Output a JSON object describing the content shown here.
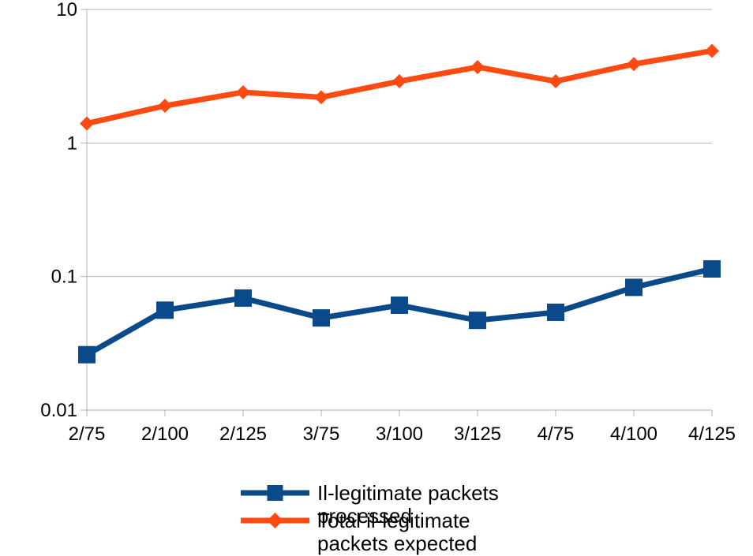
{
  "chart_data": {
    "type": "line",
    "title": "",
    "xlabel": "",
    "ylabel": "",
    "yscale": "log",
    "ylim": [
      0.01,
      10
    ],
    "y_ticks": [
      "10",
      "1",
      "0.1",
      "0.01"
    ],
    "categories": [
      "2/75",
      "2/100",
      "2/125",
      "3/75",
      "3/100",
      "3/125",
      "4/75",
      "4/100",
      "4/125"
    ],
    "grid": "horizontal",
    "legend_position": "bottom-right",
    "series": [
      {
        "name": "Il-legitimate packets processed",
        "color": "#0b4a8a",
        "marker": "square",
        "values": [
          0.026,
          0.056,
          0.069,
          0.049,
          0.061,
          0.047,
          0.054,
          0.083,
          0.114
        ]
      },
      {
        "name": "Total il-legitimate packets expected",
        "color": "#ff4a12",
        "marker": "diamond",
        "values": [
          1.4,
          1.9,
          2.4,
          2.2,
          2.9,
          3.7,
          2.9,
          3.9,
          4.9
        ]
      }
    ]
  }
}
